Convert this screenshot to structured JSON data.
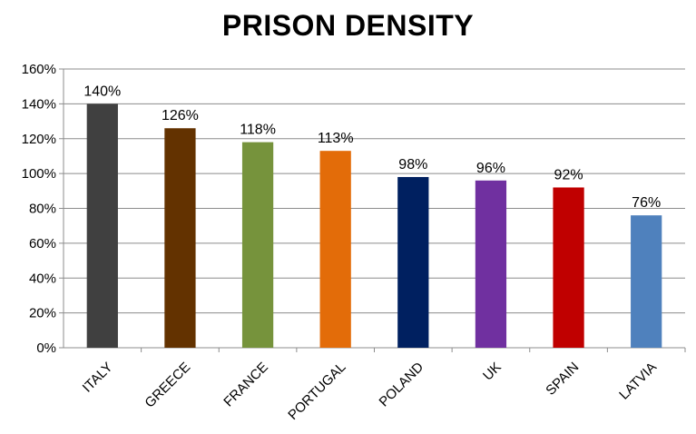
{
  "chart_data": {
    "type": "bar",
    "title": "PRISON DENSITY",
    "xlabel": "",
    "ylabel": "",
    "categories": [
      "ITALY",
      "GREECE",
      "FRANCE",
      "PORTUGAL",
      "POLAND",
      "UK",
      "SPAIN",
      "LATVIA"
    ],
    "values": [
      140,
      126,
      118,
      113,
      98,
      96,
      92,
      76
    ],
    "data_labels": [
      "140%",
      "126%",
      "118%",
      "113%",
      "98%",
      "96%",
      "92%",
      "76%"
    ],
    "colors": [
      "#404040",
      "#633200",
      "#76933c",
      "#e36c09",
      "#002060",
      "#7030a0",
      "#c00000",
      "#4f81bd"
    ],
    "ylim": [
      0,
      160
    ],
    "yticks": [
      0,
      20,
      40,
      60,
      80,
      100,
      120,
      140,
      160
    ],
    "ytick_labels": [
      "0%",
      "20%",
      "40%",
      "60%",
      "80%",
      "100%",
      "120%",
      "140%",
      "160%"
    ],
    "grid": true,
    "legend": "none"
  }
}
